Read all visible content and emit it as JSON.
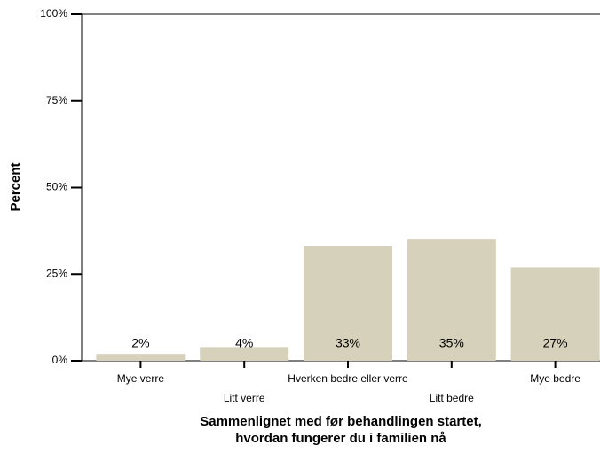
{
  "chart_data": {
    "type": "bar",
    "ylabel": "Percent",
    "xlabel": [
      "Sammenlignet med før behandlingen startet,",
      "hvordan fungerer du i familien nå"
    ],
    "categories": [
      "Mye verre",
      "Litt verre",
      "Hverken bedre eller verre",
      "Litt bedre",
      "Mye bedre"
    ],
    "values": [
      2,
      4,
      33,
      35,
      27
    ],
    "value_labels": [
      "2%",
      "4%",
      "33%",
      "35%",
      "27%"
    ],
    "color": "#d6d1bb",
    "ylim": [
      0,
      100
    ],
    "yticks": [
      {
        "value": 0,
        "label": "0%"
      },
      {
        "value": 25,
        "label": "25%"
      },
      {
        "value": 50,
        "label": "50%"
      },
      {
        "value": 75,
        "label": "75%"
      },
      {
        "value": 100,
        "label": "100%"
      }
    ]
  }
}
